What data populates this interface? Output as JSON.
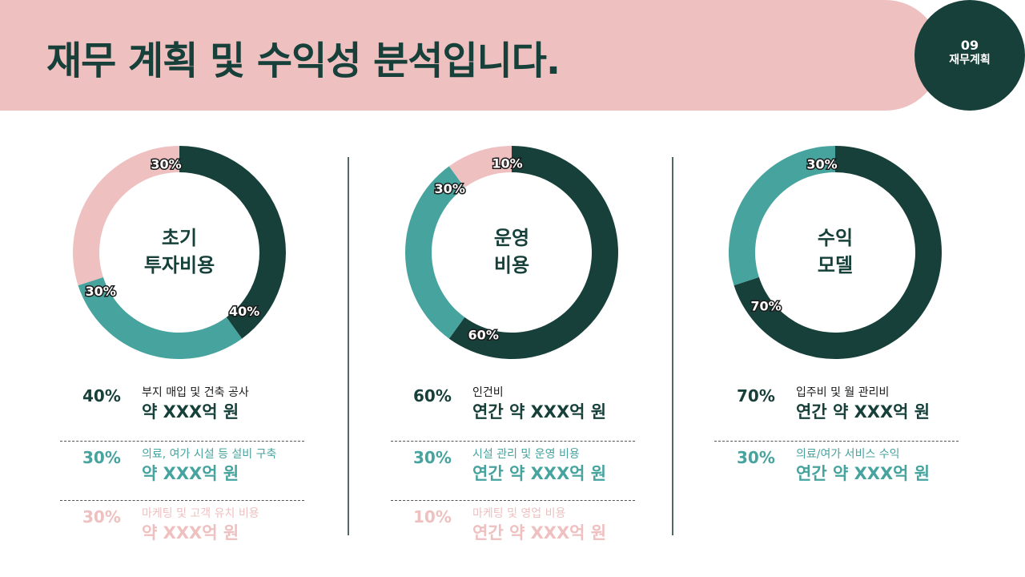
{
  "header": {
    "title": "재무 계획 및 수익성 분석입니다.",
    "badge_number": "09",
    "badge_label": "재무계획"
  },
  "colors": {
    "dark": "#17403a",
    "teal": "#46a39e",
    "pink": "#efc0c0",
    "banner": "#efc0c0"
  },
  "chart_data": [
    {
      "type": "pie",
      "title": "초기 투자비용",
      "title_lines": [
        "초기",
        "투자비용"
      ],
      "categories": [
        "부지 매입 및 건축 공사",
        "의료, 여가 시설 등 설비 구축",
        "마케팅 및 고객 유치 비용"
      ],
      "values": [
        40,
        30,
        30
      ],
      "labels": [
        "40%",
        "30%",
        "30%"
      ],
      "colors": [
        "#17403a",
        "#46a39e",
        "#efc0c0"
      ],
      "amounts": [
        "약 XXX억 원",
        "약 XXX억 원",
        "약 XXX억 원"
      ]
    },
    {
      "type": "pie",
      "title": "운영 비용",
      "title_lines": [
        "운영",
        "비용"
      ],
      "categories": [
        "인건비",
        "시설 관리 및 운영 비용",
        "마케팅 및 영업 비용"
      ],
      "values": [
        60,
        30,
        10
      ],
      "labels": [
        "60%",
        "30%",
        "10%"
      ],
      "colors": [
        "#17403a",
        "#46a39e",
        "#efc0c0"
      ],
      "amounts": [
        "연간 약 XXX억 원",
        "연간 약 XXX억 원",
        "연간 약 XXX억 원"
      ]
    },
    {
      "type": "pie",
      "title": "수익 모델",
      "title_lines": [
        "수익",
        "모델"
      ],
      "categories": [
        "입주비 및 월 관리비",
        "의료/여가 서비스 수익"
      ],
      "values": [
        70,
        30
      ],
      "labels": [
        "70%",
        "30%"
      ],
      "colors": [
        "#17403a",
        "#46a39e"
      ],
      "amounts": [
        "연간 약 XXX억 원",
        "연간 약 XXX억 원"
      ]
    }
  ]
}
